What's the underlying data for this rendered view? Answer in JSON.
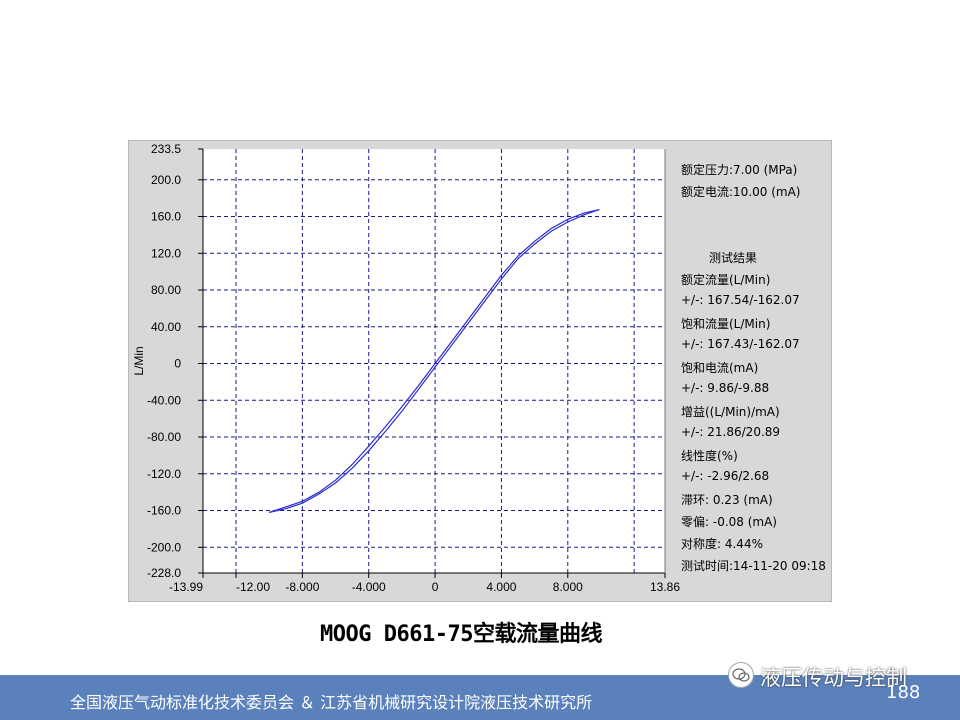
{
  "chart_data": {
    "type": "line",
    "title": "MOOG D661-75空载流量曲线",
    "xlabel": "",
    "ylabel": "L/Min",
    "xlim": [
      -13.99,
      13.86
    ],
    "ylim": [
      -228.0,
      233.5
    ],
    "x_tick_labels": [
      "-13.99",
      "-12.00",
      "-8.000",
      "-4.000",
      "0",
      "4.000",
      "8.000",
      "13.86"
    ],
    "x_tick_values": [
      -13.99,
      -12,
      -8,
      -4,
      0,
      4,
      8,
      13.86
    ],
    "y_tick_labels": [
      "233.5",
      "200.0",
      "160.0",
      "120.0",
      "80.00",
      "40.00",
      "0",
      "-40.00",
      "-80.00",
      "-120.0",
      "-160.0",
      "-200.0",
      "-228.0"
    ],
    "y_tick_values": [
      233.5,
      200,
      160,
      120,
      80,
      40,
      0,
      -40,
      -80,
      -120,
      -160,
      -200,
      -228
    ],
    "x_grid": [
      -12,
      -8,
      -4,
      0,
      4,
      8,
      12
    ],
    "y_grid": [
      200,
      160,
      120,
      80,
      40,
      0,
      -40,
      -80,
      -120,
      -160,
      -200
    ],
    "grid": true,
    "colors": {
      "curve": "#2b2bd0",
      "grid": "#1a1a8a",
      "panel": "#d8d8d8",
      "plot_bg": "#ffffff",
      "footer": "#5a81bb"
    },
    "series": [
      {
        "x": [
          -10,
          -9,
          -8,
          -7,
          -6,
          -5,
          -4,
          -3,
          -2,
          -1,
          0,
          1,
          2,
          3,
          4,
          5,
          6,
          7,
          8,
          9,
          9.9
        ],
        "values": [
          -162,
          -158,
          -152,
          -142,
          -130,
          -114,
          -95,
          -74,
          -52,
          -28,
          -4,
          20,
          44,
          68,
          92,
          114,
          130,
          144,
          154,
          162,
          167.5
        ]
      },
      {
        "x": [
          -10,
          -9,
          -8,
          -7,
          -6,
          -5,
          -4,
          -3,
          -2,
          -1,
          0,
          1,
          2,
          3,
          4,
          5,
          6,
          7,
          8,
          9,
          9.9
        ],
        "values": [
          -162,
          -156,
          -150,
          -140,
          -127,
          -110,
          -90,
          -69,
          -47,
          -24,
          0,
          24,
          48,
          72,
          96,
          117,
          133,
          147,
          157,
          164,
          167.5
        ]
      }
    ]
  },
  "info_panel": {
    "lines": [
      "额定压力:7.00 (MPa)",
      "额定电流:10.00 (mA)",
      "测试结果",
      "额定流量(L/Min)",
      "+/-: 167.54/-162.07",
      "饱和流量(L/Min)",
      "+/-: 167.43/-162.07",
      "饱和电流(mA)",
      "+/-: 9.86/-9.88",
      "增益((L/Min)/mA)",
      "+/-: 21.86/20.89",
      "线性度(%)",
      "+/-: -2.96/2.68",
      "滞环: 0.23 (mA)",
      "零偏: -0.08 (mA)",
      "对称度: 4.44%",
      "测试时间:14-11-20 09:18"
    ]
  },
  "footer": {
    "text": "全国液压气动标准化技术委员会 ＆ 江苏省机械研究设计院液压技术研究所",
    "wechat_name": "液压传动与控制",
    "page_number": "188"
  }
}
